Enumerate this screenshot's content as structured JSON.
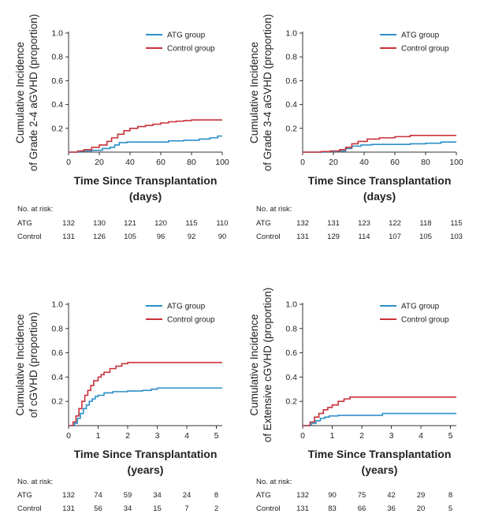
{
  "colors": {
    "atg": "#2b8fc8",
    "control": "#c8323a",
    "axis": "#333333"
  },
  "risk_title": "No. at risk:",
  "chart_data": [
    {
      "id": "p1",
      "type": "line",
      "step": true,
      "ylabel": [
        "Cumulative Incidence",
        "of Grade 2-4 aGVHD (proportion)"
      ],
      "xlabel": [
        "Time Since Transplantation",
        "(days)"
      ],
      "xlim": [
        0,
        100
      ],
      "ylim": [
        0,
        1.0
      ],
      "xticks": [
        "0",
        "20",
        "40",
        "60",
        "80",
        "100"
      ],
      "yticks": [
        "0.2",
        "0.4",
        "0.6",
        "0.8",
        "1.0"
      ],
      "legend_position": "top-right",
      "series": [
        {
          "name": "ATG group",
          "color": "#2b8fc8",
          "x": [
            0,
            8,
            15,
            22,
            27,
            30,
            33,
            38,
            45,
            55,
            65,
            75,
            85,
            92,
            97,
            100
          ],
          "y": [
            0,
            0.01,
            0.015,
            0.03,
            0.04,
            0.06,
            0.08,
            0.085,
            0.085,
            0.085,
            0.095,
            0.1,
            0.11,
            0.12,
            0.135,
            0.135
          ]
        },
        {
          "name": "Control group",
          "color": "#c8323a",
          "x": [
            0,
            6,
            10,
            15,
            20,
            25,
            28,
            32,
            36,
            40,
            45,
            50,
            55,
            60,
            65,
            70,
            75,
            80,
            100
          ],
          "y": [
            0,
            0.01,
            0.02,
            0.04,
            0.06,
            0.09,
            0.12,
            0.15,
            0.18,
            0.2,
            0.215,
            0.225,
            0.235,
            0.245,
            0.255,
            0.26,
            0.265,
            0.27,
            0.27
          ]
        }
      ],
      "risk": {
        "xticks": [
          "0",
          "20",
          "40",
          "60",
          "80",
          "100"
        ],
        "rows": [
          {
            "label": "ATG",
            "values": [
              "132",
              "130",
              "121",
              "120",
              "115",
              "110"
            ]
          },
          {
            "label": "Control",
            "values": [
              "131",
              "126",
              "105",
              "96",
              "92",
              "90"
            ]
          }
        ]
      }
    },
    {
      "id": "p2",
      "type": "line",
      "step": true,
      "ylabel": [
        "Cumulative Incidence",
        "of Grade 3-4 aGVHD (proportion)"
      ],
      "xlabel": [
        "Time Since Transplantation",
        "(days)"
      ],
      "xlim": [
        0,
        100
      ],
      "ylim": [
        0,
        1.0
      ],
      "xticks": [
        "0",
        "20",
        "40",
        "60",
        "80",
        "100"
      ],
      "yticks": [
        "0.2",
        "0.4",
        "0.6",
        "0.8",
        "1.0"
      ],
      "legend_position": "top-right",
      "series": [
        {
          "name": "ATG group",
          "color": "#2b8fc8",
          "x": [
            0,
            15,
            22,
            28,
            32,
            38,
            45,
            55,
            70,
            80,
            90,
            100
          ],
          "y": [
            0,
            0.005,
            0.01,
            0.03,
            0.05,
            0.06,
            0.065,
            0.065,
            0.07,
            0.075,
            0.085,
            0.085
          ]
        },
        {
          "name": "Control group",
          "color": "#c8323a",
          "x": [
            0,
            12,
            18,
            24,
            28,
            32,
            36,
            42,
            50,
            60,
            70,
            100
          ],
          "y": [
            0,
            0.005,
            0.01,
            0.02,
            0.04,
            0.07,
            0.09,
            0.11,
            0.12,
            0.13,
            0.14,
            0.14
          ]
        }
      ],
      "risk": {
        "xticks": [
          "0",
          "20",
          "40",
          "60",
          "80",
          "100"
        ],
        "rows": [
          {
            "label": "ATG",
            "values": [
              "132",
              "131",
              "123",
              "122",
              "118",
              "115"
            ]
          },
          {
            "label": "Control",
            "values": [
              "131",
              "129",
              "114",
              "107",
              "105",
              "103"
            ]
          }
        ]
      }
    },
    {
      "id": "p3",
      "type": "line",
      "step": true,
      "ylabel": [
        "Cumulative Incidence",
        "of cGVHD (proportion)"
      ],
      "xlabel": [
        "Time Since Transplantation",
        "(years)"
      ],
      "xlim": [
        0,
        5.2
      ],
      "ylim": [
        0,
        1.0
      ],
      "xticks": [
        "0",
        "1",
        "2",
        "3",
        "4",
        "5"
      ],
      "yticks": [
        "0.2",
        "0.4",
        "0.6",
        "0.8",
        "1.0"
      ],
      "legend_position": "top-right",
      "series": [
        {
          "name": "ATG group",
          "color": "#2b8fc8",
          "x": [
            0,
            0.2,
            0.3,
            0.4,
            0.5,
            0.6,
            0.7,
            0.8,
            0.9,
            1.0,
            1.2,
            1.5,
            2.0,
            2.5,
            2.8,
            3.0,
            5.2
          ],
          "y": [
            0,
            0.02,
            0.06,
            0.1,
            0.14,
            0.17,
            0.2,
            0.22,
            0.24,
            0.25,
            0.27,
            0.28,
            0.285,
            0.29,
            0.3,
            0.31,
            0.31
          ]
        },
        {
          "name": "Control group",
          "color": "#c8323a",
          "x": [
            0,
            0.15,
            0.25,
            0.35,
            0.45,
            0.55,
            0.65,
            0.75,
            0.85,
            1.0,
            1.1,
            1.2,
            1.4,
            1.6,
            1.8,
            2.0,
            5.2
          ],
          "y": [
            0,
            0.03,
            0.08,
            0.14,
            0.2,
            0.25,
            0.29,
            0.33,
            0.37,
            0.4,
            0.42,
            0.44,
            0.47,
            0.49,
            0.51,
            0.52,
            0.52
          ]
        }
      ],
      "risk": {
        "xticks": [
          "0",
          "1",
          "2",
          "3",
          "4",
          "5"
        ],
        "rows": [
          {
            "label": "ATG",
            "values": [
              "132",
              "74",
              "59",
              "34",
              "24",
              "8"
            ]
          },
          {
            "label": "Control",
            "values": [
              "131",
              "56",
              "34",
              "15",
              "7",
              "2"
            ]
          }
        ]
      }
    },
    {
      "id": "p4",
      "type": "line",
      "step": true,
      "ylabel": [
        "Cumulative Incidence",
        "of Extensive cGVHD (proportion)"
      ],
      "xlabel": [
        "Time Since Transplantation",
        "(years)"
      ],
      "xlim": [
        0,
        5.2
      ],
      "ylim": [
        0,
        1.0
      ],
      "xticks": [
        "0",
        "1",
        "2",
        "3",
        "4",
        "5"
      ],
      "yticks": [
        "0.2",
        "0.4",
        "0.6",
        "0.8",
        "1.0"
      ],
      "legend_position": "top-right",
      "series": [
        {
          "name": "ATG group",
          "color": "#2b8fc8",
          "x": [
            0,
            0.3,
            0.45,
            0.6,
            0.75,
            0.9,
            1.2,
            1.6,
            2.0,
            2.7,
            5.2
          ],
          "y": [
            0,
            0.02,
            0.04,
            0.06,
            0.07,
            0.08,
            0.085,
            0.085,
            0.085,
            0.1,
            0.1
          ]
        },
        {
          "name": "Control group",
          "color": "#c8323a",
          "x": [
            0,
            0.25,
            0.4,
            0.55,
            0.7,
            0.85,
            1.0,
            1.2,
            1.4,
            1.6,
            5.2
          ],
          "y": [
            0,
            0.03,
            0.07,
            0.1,
            0.13,
            0.15,
            0.17,
            0.2,
            0.22,
            0.235,
            0.235
          ]
        }
      ],
      "risk": {
        "xticks": [
          "0",
          "1",
          "2",
          "3",
          "4",
          "5"
        ],
        "rows": [
          {
            "label": "ATG",
            "values": [
              "132",
              "90",
              "75",
              "42",
              "29",
              "8"
            ]
          },
          {
            "label": "Control",
            "values": [
              "131",
              "83",
              "66",
              "36",
              "20",
              "5"
            ]
          }
        ]
      }
    }
  ]
}
